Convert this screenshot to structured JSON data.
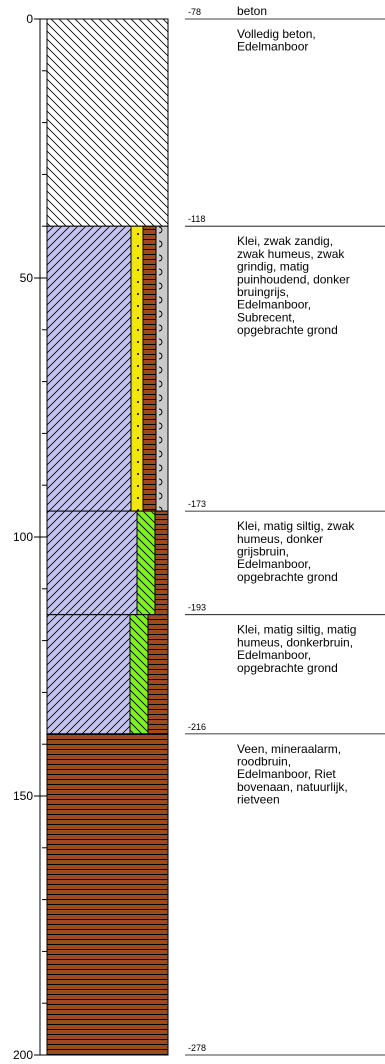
{
  "axis": {
    "ylim": [
      0,
      200
    ],
    "yticks": [
      0,
      50,
      100,
      150,
      200
    ],
    "minor_yticks": [
      10,
      20,
      30,
      40,
      60,
      70,
      80,
      90,
      110,
      120,
      130,
      140,
      160,
      170,
      180,
      190
    ]
  },
  "layers": [
    {
      "top": 0,
      "bottom": 40,
      "level": "-78",
      "name": "beton",
      "description": [
        "Volledig beton,",
        "Edelmanboor"
      ]
    },
    {
      "top": 40,
      "bottom": 95,
      "level": "-118",
      "description": [
        "Klei, zwak zandig,",
        "zwak humeus, zwak",
        "grindig, matig",
        "puinhoudend, donker",
        "bruingrijs,",
        "Edelmanboor,",
        "Subrecent,",
        "opgebrachte grond"
      ]
    },
    {
      "top": 95,
      "bottom": 115,
      "level": "-173",
      "description": [
        "Klei, matig siltig, zwak",
        "humeus, donker",
        "grijsbruin,",
        "Edelmanboor,",
        "opgebrachte grond"
      ]
    },
    {
      "top": 115,
      "bottom": 138,
      "level": "-193",
      "description": [
        "Klei, matig siltig, matig",
        "humeus, donkerbruin,",
        "Edelmanboor,",
        "opgebrachte grond"
      ]
    },
    {
      "top": 138,
      "bottom": 200,
      "level": "-216",
      "description": [
        "Veen, mineraalarm,",
        "roodbruin,",
        "Edelmanboor, Riet",
        "bovenaan, natuurlijk,",
        "rietveen"
      ]
    }
  ],
  "base_level": "-278"
}
